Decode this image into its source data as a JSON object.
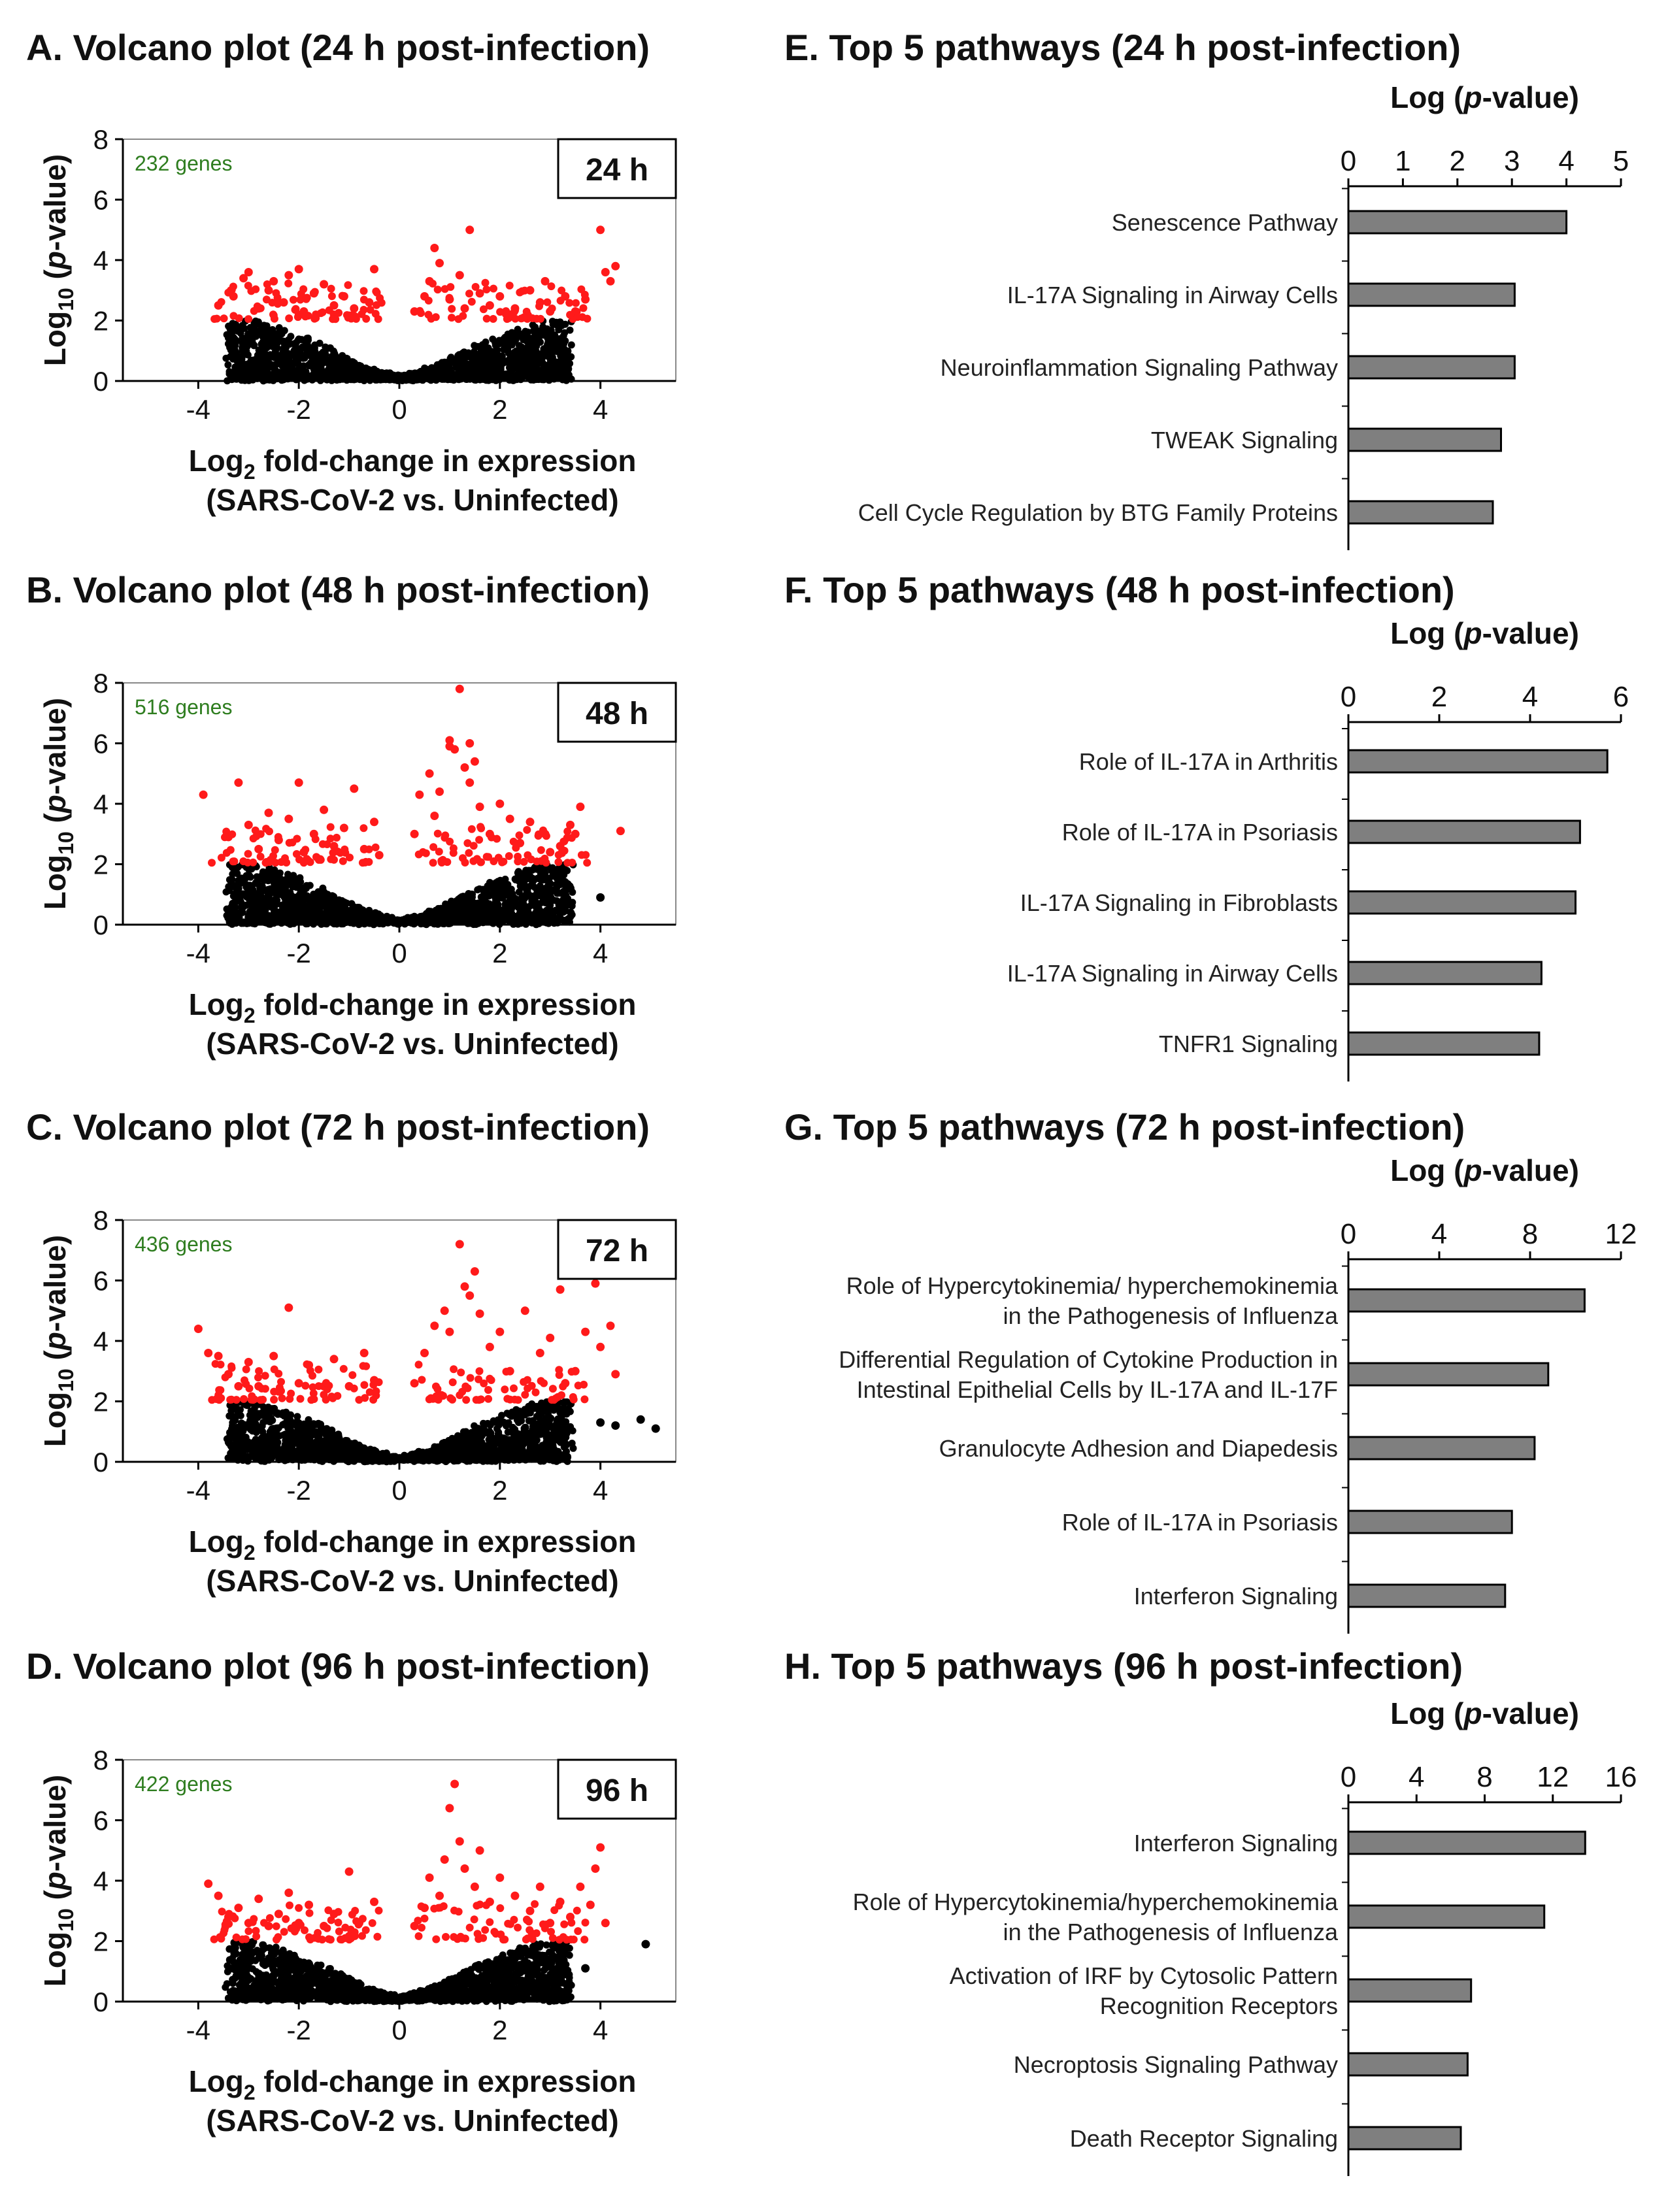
{
  "colors": {
    "significant": "#ff1a1a",
    "nonsignificant": "#000000",
    "gene_count": "#2e7d1f",
    "bar_fill": "#7f7f7f"
  },
  "volcano_common": {
    "ylabel": "Log10 (p-value)",
    "xlabel_line1": "Log2 fold-change in expression",
    "xlabel_line2": "(SARS-CoV-2 vs. Uninfected)",
    "xticks": [
      "-4",
      "-2",
      "0",
      "2",
      "4"
    ],
    "yticks": [
      "0",
      "2",
      "4",
      "6",
      "8"
    ]
  },
  "chart_data": [
    {
      "id": "A",
      "type": "scatter",
      "title": "A. Volcano plot (24 h post-infection)",
      "time_label": "24 h",
      "gene_count": "232 genes",
      "xlabel": "Log2 fold-change in expression (SARS-CoV-2 vs. Uninfected)",
      "ylabel": "Log10 (p-value)",
      "xlim": [
        -5.5,
        5.5
      ],
      "ylim": [
        0,
        8
      ],
      "significance_threshold": 2,
      "points_significant": [
        [
          -3.6,
          2.5
        ],
        [
          -3.3,
          2.8
        ],
        [
          -3.1,
          3.4
        ],
        [
          -3.0,
          3.6
        ],
        [
          -2.8,
          2.4
        ],
        [
          -2.6,
          3.0
        ],
        [
          -2.5,
          3.3
        ],
        [
          -2.3,
          2.6
        ],
        [
          -2.2,
          3.5
        ],
        [
          -2.0,
          3.7
        ],
        [
          -1.9,
          2.3
        ],
        [
          -1.7,
          2.9
        ],
        [
          -1.5,
          3.2
        ],
        [
          -1.3,
          2.5
        ],
        [
          -1.1,
          2.8
        ],
        [
          -0.9,
          2.4
        ],
        [
          -0.5,
          3.7
        ],
        [
          -0.6,
          2.6
        ],
        [
          0.3,
          2.3
        ],
        [
          0.5,
          2.8
        ],
        [
          0.6,
          3.3
        ],
        [
          0.7,
          4.4
        ],
        [
          0.8,
          3.9
        ],
        [
          1.0,
          2.7
        ],
        [
          1.2,
          3.5
        ],
        [
          1.4,
          5.0
        ],
        [
          1.3,
          2.4
        ],
        [
          1.6,
          2.9
        ],
        [
          1.8,
          2.5
        ],
        [
          2.0,
          2.8
        ],
        [
          2.3,
          2.4
        ],
        [
          2.6,
          3.0
        ],
        [
          2.8,
          2.6
        ],
        [
          2.9,
          3.3
        ],
        [
          3.0,
          2.3
        ],
        [
          3.3,
          2.8
        ],
        [
          3.5,
          2.3
        ],
        [
          3.7,
          2.7
        ],
        [
          4.0,
          5.0
        ],
        [
          4.1,
          3.6
        ],
        [
          4.2,
          3.3
        ],
        [
          4.3,
          3.8
        ]
      ],
      "max_abs_fc": 4.3,
      "max_y": 5.0
    },
    {
      "id": "B",
      "type": "scatter",
      "title": "B. Volcano plot (48 h post-infection)",
      "time_label": "48 h",
      "gene_count": "516 genes",
      "xlabel": "Log2 fold-change in expression (SARS-CoV-2 vs. Uninfected)",
      "ylabel": "Log10 (p-value)",
      "xlim": [
        -5.5,
        5.5
      ],
      "ylim": [
        0,
        8
      ],
      "significance_threshold": 2,
      "points_significant": [
        [
          -3.9,
          4.3
        ],
        [
          -3.2,
          4.7
        ],
        [
          -3.4,
          2.9
        ],
        [
          -3.0,
          3.3
        ],
        [
          -2.8,
          2.5
        ],
        [
          -2.6,
          3.7
        ],
        [
          -2.4,
          2.8
        ],
        [
          -2.2,
          3.5
        ],
        [
          -2.0,
          4.7
        ],
        [
          -1.9,
          2.4
        ],
        [
          -1.7,
          3.0
        ],
        [
          -1.5,
          3.8
        ],
        [
          -1.3,
          2.6
        ],
        [
          -1.1,
          3.2
        ],
        [
          -0.9,
          4.5
        ],
        [
          -0.7,
          2.5
        ],
        [
          -0.5,
          3.4
        ],
        [
          -0.4,
          2.3
        ],
        [
          0.3,
          3.0
        ],
        [
          0.4,
          4.3
        ],
        [
          0.6,
          5.0
        ],
        [
          0.7,
          3.6
        ],
        [
          0.8,
          4.4
        ],
        [
          1.0,
          5.9
        ],
        [
          1.0,
          6.1
        ],
        [
          1.1,
          5.8
        ],
        [
          1.2,
          7.8
        ],
        [
          1.3,
          5.2
        ],
        [
          1.4,
          6.0
        ],
        [
          1.4,
          4.7
        ],
        [
          1.5,
          5.4
        ],
        [
          1.6,
          3.9
        ],
        [
          1.8,
          3.0
        ],
        [
          2.0,
          4.0
        ],
        [
          2.2,
          3.5
        ],
        [
          2.4,
          2.7
        ],
        [
          2.6,
          3.4
        ],
        [
          2.9,
          3.0
        ],
        [
          3.0,
          2.4
        ],
        [
          3.2,
          2.6
        ],
        [
          3.4,
          3.3
        ],
        [
          3.6,
          3.9
        ],
        [
          3.5,
          3.0
        ],
        [
          4.4,
          3.1
        ],
        [
          3.4,
          1.2
        ],
        [
          3.0,
          0.9
        ],
        [
          4.0,
          0.9
        ]
      ],
      "max_abs_fc": 4.4,
      "max_y": 7.8
    },
    {
      "id": "C",
      "type": "scatter",
      "title": "C. Volcano plot (72 h post-infection)",
      "time_label": "72 h",
      "gene_count": "436 genes",
      "xlabel": "Log2 fold-change in expression (SARS-CoV-2 vs. Uninfected)",
      "ylabel": "Log10 (p-value)",
      "xlim": [
        -5.5,
        5.5
      ],
      "ylim": [
        0,
        8
      ],
      "significance_threshold": 2,
      "points_significant": [
        [
          -4.0,
          4.4
        ],
        [
          -3.8,
          3.6
        ],
        [
          -3.6,
          3.5
        ],
        [
          -3.4,
          2.9
        ],
        [
          -3.2,
          2.5
        ],
        [
          -3.0,
          3.3
        ],
        [
          -2.8,
          2.5
        ],
        [
          -2.5,
          3.5
        ],
        [
          -2.2,
          5.1
        ],
        [
          -2.0,
          2.6
        ],
        [
          -1.8,
          3.2
        ],
        [
          -1.5,
          2.5
        ],
        [
          -1.3,
          3.4
        ],
        [
          -1.0,
          2.5
        ],
        [
          -0.7,
          3.6
        ],
        [
          -0.5,
          2.7
        ],
        [
          0.3,
          2.6
        ],
        [
          0.5,
          3.6
        ],
        [
          0.7,
          4.5
        ],
        [
          0.9,
          5.0
        ],
        [
          1.0,
          4.3
        ],
        [
          1.2,
          7.2
        ],
        [
          1.3,
          5.8
        ],
        [
          1.4,
          5.5
        ],
        [
          1.5,
          6.3
        ],
        [
          1.6,
          4.9
        ],
        [
          1.8,
          3.8
        ],
        [
          2.0,
          4.3
        ],
        [
          2.2,
          3.0
        ],
        [
          2.5,
          5.0
        ],
        [
          2.8,
          3.6
        ],
        [
          3.0,
          4.1
        ],
        [
          3.2,
          5.7
        ],
        [
          3.3,
          2.6
        ],
        [
          3.5,
          3.0
        ],
        [
          3.7,
          4.3
        ],
        [
          3.9,
          5.9
        ],
        [
          4.0,
          3.8
        ],
        [
          4.2,
          4.5
        ],
        [
          4.3,
          2.9
        ],
        [
          4.0,
          1.3
        ],
        [
          4.3,
          1.2
        ],
        [
          4.8,
          1.4
        ],
        [
          5.1,
          1.1
        ]
      ],
      "max_abs_fc": 5.1,
      "max_y": 7.2
    },
    {
      "id": "D",
      "type": "scatter",
      "title": "D. Volcano plot (96 h post-infection)",
      "time_label": "96 h",
      "gene_count": "422 genes",
      "xlabel": "Log2 fold-change in expression (SARS-CoV-2 vs. Uninfected)",
      "ylabel": "Log10 (p-value)",
      "xlim": [
        -5.5,
        5.5
      ],
      "ylim": [
        0,
        8
      ],
      "significance_threshold": 2,
      "points_significant": [
        [
          -3.8,
          3.9
        ],
        [
          -3.6,
          3.5
        ],
        [
          -3.4,
          2.8
        ],
        [
          -3.2,
          3.1
        ],
        [
          -3.0,
          2.6
        ],
        [
          -2.8,
          3.4
        ],
        [
          -2.6,
          2.5
        ],
        [
          -2.4,
          2.9
        ],
        [
          -2.2,
          3.6
        ],
        [
          -2.0,
          2.6
        ],
        [
          -1.8,
          3.2
        ],
        [
          -1.5,
          2.5
        ],
        [
          -1.3,
          2.9
        ],
        [
          -1.0,
          4.3
        ],
        [
          -0.8,
          2.6
        ],
        [
          -0.5,
          3.3
        ],
        [
          0.3,
          2.5
        ],
        [
          0.5,
          3.1
        ],
        [
          0.6,
          4.1
        ],
        [
          0.8,
          3.5
        ],
        [
          0.9,
          4.7
        ],
        [
          1.0,
          6.4
        ],
        [
          1.1,
          7.2
        ],
        [
          1.2,
          5.3
        ],
        [
          1.3,
          4.4
        ],
        [
          1.5,
          3.8
        ],
        [
          1.6,
          5.0
        ],
        [
          1.8,
          3.3
        ],
        [
          2.0,
          4.1
        ],
        [
          2.3,
          3.5
        ],
        [
          2.6,
          3.0
        ],
        [
          2.8,
          3.8
        ],
        [
          3.0,
          2.6
        ],
        [
          3.2,
          3.3
        ],
        [
          3.4,
          2.8
        ],
        [
          3.6,
          3.8
        ],
        [
          3.8,
          3.2
        ],
        [
          3.9,
          4.4
        ],
        [
          4.0,
          5.1
        ],
        [
          4.1,
          2.6
        ],
        [
          3.7,
          1.1
        ],
        [
          4.9,
          1.9
        ]
      ],
      "max_abs_fc": 4.9,
      "max_y": 7.2
    },
    {
      "id": "E",
      "type": "bar",
      "orientation": "horizontal",
      "title": "E. Top 5 pathways (24 h post-infection)",
      "axis_title": "Log (p-value)",
      "xlim": [
        0,
        5
      ],
      "xticks": [
        "0",
        "1",
        "2",
        "3",
        "4",
        "5"
      ],
      "categories": [
        [
          "Senescence Pathway"
        ],
        [
          "IL-17A Signaling in Airway Cells"
        ],
        [
          "Neuroinflammation  Signaling Pathway"
        ],
        [
          "TWEAK Signaling"
        ],
        [
          "Cell Cycle Regulation  by BTG Family Proteins"
        ]
      ],
      "values": [
        4.0,
        3.05,
        3.05,
        2.8,
        2.65
      ]
    },
    {
      "id": "F",
      "type": "bar",
      "orientation": "horizontal",
      "title": "F. Top 5 pathways (48 h post-infection)",
      "axis_title": "Log (p-value)",
      "xlim": [
        0,
        6
      ],
      "xticks": [
        "0",
        "2",
        "4",
        "6"
      ],
      "categories": [
        [
          "Role of IL-17A in Arthritis"
        ],
        [
          "Role of IL-17A in Psoriasis"
        ],
        [
          "IL-17A Signaling  in Fibroblasts"
        ],
        [
          "IL-17A Signaling in Airway Cells"
        ],
        [
          "TNFR1  Signaling"
        ]
      ],
      "values": [
        5.7,
        5.1,
        5.0,
        4.25,
        4.2
      ]
    },
    {
      "id": "G",
      "type": "bar",
      "orientation": "horizontal",
      "title": "G. Top 5 pathways (72 h post-infection)",
      "axis_title": "Log (p-value)",
      "xlim": [
        0,
        12
      ],
      "xticks": [
        "0",
        "4",
        "8",
        "12"
      ],
      "categories": [
        [
          "Role of Hypercytokinemia/ hyperchemokinemia",
          "in the Pathogenesis  of Influenza"
        ],
        [
          "Differential Regulation  of Cytokine Production in",
          "Intestinal Epithelial Cells by IL-17A and IL-17F"
        ],
        [
          "Granulocyte Adhesion and  Diapedesis"
        ],
        [
          "Role of IL-17A in Psoriasis"
        ],
        [
          "Interferon Signaling"
        ]
      ],
      "values": [
        10.4,
        8.8,
        8.2,
        7.2,
        6.9
      ]
    },
    {
      "id": "H",
      "type": "bar",
      "orientation": "horizontal",
      "title": "H. Top 5 pathways (96 h post-infection)",
      "axis_title": "Log (p-value)",
      "xlim": [
        0,
        16
      ],
      "xticks": [
        "0",
        "4",
        "8",
        "12",
        "16"
      ],
      "categories": [
        [
          "Interferon Signaling"
        ],
        [
          "Role of Hypercytokinemia/hyperchemokinemia",
          "in the Pathogenesis  of Influenza"
        ],
        [
          "Activation of IRF by Cytosolic Pattern",
          "Recognition Receptors"
        ],
        [
          "Necroptosis Signaling Pathway"
        ],
        [
          "Death Receptor Signaling"
        ]
      ],
      "values": [
        13.9,
        11.5,
        7.2,
        7.0,
        6.6
      ]
    }
  ]
}
